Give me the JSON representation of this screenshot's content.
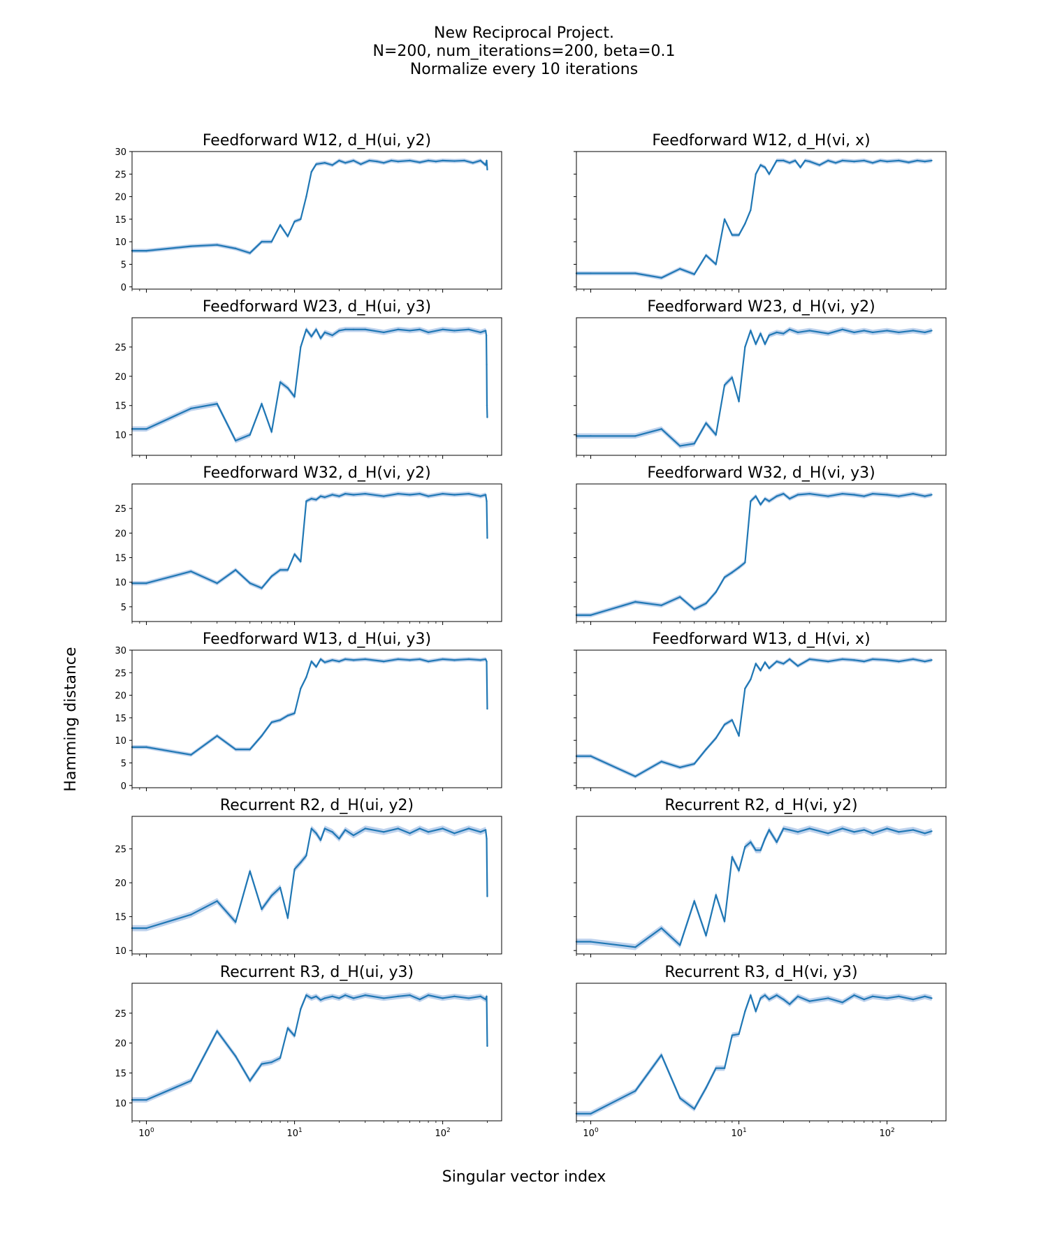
{
  "figure": {
    "title_lines": [
      "New Reciprocal Project.",
      "N=200, num_iterations=200, beta=0.1",
      "Normalize every 10 iterations"
    ],
    "xlabel": "Singular vector index",
    "ylabel": "Hamming distance",
    "line_color": "#1f77b4",
    "band_color": "#aec7e8"
  },
  "chart_data": [
    {
      "type": "line",
      "title": "Feedforward W12, d_H(ui, y2)",
      "xscale": "log",
      "xlim": [
        0.8,
        250
      ],
      "ylim": [
        -0.5,
        30
      ],
      "yticks": [
        0,
        5,
        10,
        15,
        20,
        25,
        30
      ],
      "show_yticklabels": true,
      "xticks": [
        "10^0",
        "10^1",
        "10^2"
      ],
      "show_xticklabels": false,
      "x": [
        0.8,
        1,
        2,
        3,
        4,
        5,
        6,
        7,
        8,
        9,
        10,
        11,
        12,
        13,
        14,
        16,
        18,
        20,
        22,
        25,
        28,
        32,
        36,
        40,
        45,
        50,
        60,
        70,
        80,
        90,
        100,
        120,
        140,
        160,
        180,
        195,
        198,
        200
      ],
      "y": [
        8,
        8,
        9,
        9.3,
        8.5,
        7.5,
        10,
        10,
        13.7,
        11.2,
        14.5,
        15,
        20,
        25.5,
        27.2,
        27.5,
        27,
        28,
        27.5,
        28,
        27.2,
        28,
        27.8,
        27.5,
        28,
        27.8,
        28,
        27.6,
        28,
        27.8,
        28,
        27.9,
        28,
        27.5,
        28,
        27,
        28,
        26
      ]
    },
    {
      "type": "line",
      "title": "Feedforward W12, d_H(vi, x)",
      "xscale": "log",
      "xlim": [
        0.8,
        250
      ],
      "ylim": [
        -0.5,
        30
      ],
      "yticks": [
        0,
        5,
        10,
        15,
        20,
        25,
        30
      ],
      "show_yticklabels": false,
      "xticks": [
        "10^0",
        "10^1",
        "10^2"
      ],
      "show_xticklabels": false,
      "x": [
        0.8,
        1,
        2,
        3,
        4,
        5,
        6,
        7,
        8,
        9,
        10,
        11,
        12,
        13,
        14,
        15,
        16,
        18,
        20,
        22,
        24,
        26,
        28,
        30,
        35,
        40,
        45,
        50,
        60,
        70,
        80,
        90,
        100,
        120,
        140,
        160,
        180,
        200
      ],
      "y": [
        3,
        3,
        3,
        2,
        4,
        2.8,
        7,
        5,
        15,
        11.5,
        11.5,
        14,
        17,
        25,
        27,
        26.5,
        25,
        28,
        28,
        27.5,
        28,
        26.5,
        28,
        27.8,
        27,
        28,
        27.5,
        28,
        27.8,
        28,
        27.5,
        28,
        27.8,
        28,
        27.6,
        28,
        27.8,
        28
      ]
    },
    {
      "type": "line",
      "title": "Feedforward W23, d_H(ui, y3)",
      "xscale": "log",
      "xlim": [
        0.8,
        250
      ],
      "ylim": [
        6.5,
        30
      ],
      "yticks": [
        10,
        15,
        20,
        25
      ],
      "show_yticklabels": true,
      "xticks": [
        "10^0",
        "10^1",
        "10^2"
      ],
      "show_xticklabels": false,
      "x": [
        0.8,
        1,
        2,
        3,
        4,
        5,
        6,
        7,
        8,
        9,
        10,
        11,
        12,
        13,
        14,
        15,
        16,
        18,
        20,
        22,
        25,
        30,
        40,
        50,
        60,
        70,
        80,
        100,
        120,
        150,
        180,
        195,
        197,
        198,
        199,
        200
      ],
      "y": [
        11,
        11,
        14.5,
        15.3,
        9,
        10,
        15.3,
        10.5,
        19,
        18,
        16.5,
        25,
        28,
        26.8,
        28,
        26.5,
        27.5,
        27,
        27.8,
        28,
        28,
        28,
        27.5,
        28,
        27.8,
        28,
        27.5,
        28,
        27.8,
        28,
        27.5,
        27.8,
        27,
        22,
        15,
        13
      ]
    },
    {
      "type": "line",
      "title": "Feedforward W23, d_H(vi, y2)",
      "xscale": "log",
      "xlim": [
        0.8,
        250
      ],
      "ylim": [
        6.5,
        30
      ],
      "yticks": [
        10,
        15,
        20,
        25
      ],
      "show_yticklabels": false,
      "xticks": [
        "10^0",
        "10^1",
        "10^2"
      ],
      "show_xticklabels": false,
      "x": [
        0.8,
        1,
        2,
        3,
        4,
        5,
        6,
        7,
        8,
        9,
        10,
        11,
        12,
        13,
        14,
        15,
        16,
        18,
        20,
        22,
        25,
        30,
        40,
        50,
        60,
        70,
        80,
        100,
        120,
        150,
        180,
        200
      ],
      "y": [
        9.8,
        9.8,
        9.8,
        11,
        8.1,
        8.5,
        12,
        10,
        18.5,
        19.8,
        15.7,
        25,
        27.8,
        25.5,
        27.3,
        25.5,
        27,
        27.5,
        27.3,
        28,
        27.5,
        27.8,
        27.3,
        28,
        27.5,
        27.8,
        27.5,
        27.8,
        27.5,
        27.8,
        27.5,
        27.8
      ]
    },
    {
      "type": "line",
      "title": "Feedforward W32, d_H(vi, y2)",
      "xscale": "log",
      "xlim": [
        0.8,
        250
      ],
      "ylim": [
        2,
        30
      ],
      "yticks": [
        5,
        10,
        15,
        20,
        25
      ],
      "show_yticklabels": true,
      "xticks": [
        "10^0",
        "10^1",
        "10^2"
      ],
      "show_xticklabels": false,
      "x": [
        0.8,
        1,
        2,
        3,
        4,
        5,
        6,
        7,
        8,
        9,
        10,
        11,
        12,
        13,
        14,
        15,
        16,
        18,
        20,
        22,
        25,
        30,
        40,
        50,
        60,
        70,
        80,
        100,
        120,
        150,
        180,
        195,
        198,
        200
      ],
      "y": [
        9.8,
        9.8,
        12.2,
        9.8,
        12.5,
        9.8,
        8.8,
        11.2,
        12.5,
        12.5,
        15.7,
        14.2,
        26.5,
        27,
        26.8,
        27.5,
        27.3,
        27.8,
        27.5,
        28,
        27.8,
        28,
        27.5,
        28,
        27.8,
        28,
        27.5,
        28,
        27.8,
        28,
        27.5,
        27.8,
        26.5,
        19
      ]
    },
    {
      "type": "line",
      "title": "Feedforward W32, d_H(vi, y3)",
      "xscale": "log",
      "xlim": [
        0.8,
        250
      ],
      "ylim": [
        2,
        30
      ],
      "yticks": [
        5,
        10,
        15,
        20,
        25
      ],
      "show_yticklabels": false,
      "xticks": [
        "10^0",
        "10^1",
        "10^2"
      ],
      "show_xticklabels": false,
      "x": [
        0.8,
        1,
        2,
        3,
        4,
        5,
        6,
        7,
        8,
        9,
        10,
        11,
        12,
        13,
        14,
        15,
        16,
        18,
        20,
        22,
        25,
        30,
        40,
        50,
        60,
        70,
        80,
        100,
        120,
        150,
        180,
        200
      ],
      "y": [
        3.3,
        3.3,
        6,
        5.3,
        7,
        4.5,
        5.7,
        8,
        11,
        12,
        13,
        14,
        26.5,
        27.5,
        25.8,
        27,
        26.5,
        27.5,
        28,
        27,
        27.8,
        28,
        27.5,
        28,
        27.8,
        27.5,
        28,
        27.8,
        27.5,
        28,
        27.5,
        27.8
      ]
    },
    {
      "type": "line",
      "title": "Feedforward W13, d_H(ui, y3)",
      "xscale": "log",
      "xlim": [
        0.8,
        250
      ],
      "ylim": [
        -0.5,
        30
      ],
      "yticks": [
        0,
        5,
        10,
        15,
        20,
        25,
        30
      ],
      "show_yticklabels": true,
      "xticks": [
        "10^0",
        "10^1",
        "10^2"
      ],
      "show_xticklabels": false,
      "x": [
        0.8,
        1,
        2,
        3,
        4,
        5,
        6,
        7,
        8,
        9,
        10,
        11,
        12,
        13,
        14,
        15,
        16,
        18,
        20,
        22,
        25,
        30,
        40,
        50,
        60,
        70,
        80,
        100,
        120,
        150,
        180,
        195,
        198,
        200
      ],
      "y": [
        8.5,
        8.5,
        6.8,
        11,
        8,
        8,
        11,
        14,
        14.5,
        15.5,
        16,
        21.5,
        24,
        27.5,
        26.3,
        28,
        27.3,
        27.8,
        27.5,
        28,
        27.8,
        28,
        27.5,
        28,
        27.8,
        28,
        27.5,
        28,
        27.8,
        28,
        27.8,
        28,
        27.5,
        17
      ]
    },
    {
      "type": "line",
      "title": "Feedforward W13, d_H(vi, x)",
      "xscale": "log",
      "xlim": [
        0.8,
        250
      ],
      "ylim": [
        -0.5,
        30
      ],
      "yticks": [
        0,
        5,
        10,
        15,
        20,
        25,
        30
      ],
      "show_yticklabels": false,
      "xticks": [
        "10^0",
        "10^1",
        "10^2"
      ],
      "show_xticklabels": false,
      "x": [
        0.8,
        1,
        2,
        3,
        4,
        5,
        6,
        7,
        8,
        9,
        10,
        11,
        12,
        13,
        14,
        15,
        16,
        18,
        20,
        22,
        25,
        30,
        40,
        50,
        60,
        70,
        80,
        100,
        120,
        150,
        180,
        200
      ],
      "y": [
        6.5,
        6.5,
        2,
        5.3,
        4,
        4.8,
        8,
        10.5,
        13.5,
        14.5,
        11,
        21.5,
        23.5,
        27,
        25.5,
        27.3,
        26,
        27.5,
        27,
        28,
        26.5,
        28,
        27.5,
        28,
        27.8,
        27.5,
        28,
        27.8,
        27.5,
        28,
        27.5,
        27.8
      ]
    },
    {
      "type": "line",
      "title": "Recurrent R2, d_H(ui, y2)",
      "xscale": "log",
      "xlim": [
        0.8,
        250
      ],
      "ylim": [
        9.5,
        29.8
      ],
      "yticks": [
        10,
        15,
        20,
        25
      ],
      "show_yticklabels": true,
      "xticks": [
        "10^0",
        "10^1",
        "10^2"
      ],
      "show_xticklabels": false,
      "x": [
        0.8,
        1,
        2,
        3,
        4,
        5,
        6,
        7,
        8,
        9,
        10,
        11,
        12,
        13,
        14,
        15,
        16,
        18,
        20,
        22,
        25,
        30,
        40,
        50,
        60,
        70,
        80,
        100,
        120,
        150,
        180,
        195,
        198,
        200
      ],
      "y": [
        13.3,
        13.3,
        15.3,
        17.3,
        14.2,
        21.7,
        16.1,
        18.1,
        19.3,
        14.8,
        22,
        23,
        24,
        28,
        27.3,
        26.3,
        28,
        27.5,
        26.5,
        27.8,
        27,
        28,
        27.5,
        28,
        27.3,
        28,
        27.5,
        28,
        27.3,
        28,
        27.5,
        27.8,
        26.5,
        18
      ]
    },
    {
      "type": "line",
      "title": "Recurrent R2, d_H(vi, y2)",
      "xscale": "log",
      "xlim": [
        0.8,
        250
      ],
      "ylim": [
        9.5,
        29.8
      ],
      "yticks": [
        10,
        15,
        20,
        25
      ],
      "show_yticklabels": false,
      "xticks": [
        "10^0",
        "10^1",
        "10^2"
      ],
      "show_xticklabels": false,
      "x": [
        0.8,
        1,
        2,
        3,
        4,
        5,
        6,
        7,
        8,
        9,
        10,
        11,
        12,
        13,
        14,
        15,
        16,
        18,
        20,
        22,
        25,
        30,
        40,
        50,
        60,
        70,
        80,
        100,
        120,
        150,
        180,
        200
      ],
      "y": [
        11.3,
        11.3,
        10.5,
        13.3,
        10.8,
        17.3,
        12.2,
        18.2,
        14.3,
        23.8,
        21.8,
        25.3,
        26,
        24.8,
        24.8,
        26.5,
        27.8,
        26,
        28,
        27.8,
        27.5,
        28,
        27.3,
        28,
        27.5,
        27.8,
        27.3,
        28,
        27.5,
        27.8,
        27.3,
        27.6
      ]
    },
    {
      "type": "line",
      "title": "Recurrent R3, d_H(ui, y3)",
      "xscale": "log",
      "xlim": [
        0.8,
        250
      ],
      "ylim": [
        7,
        30
      ],
      "yticks": [
        10,
        15,
        20,
        25
      ],
      "show_yticklabels": true,
      "xticks": [
        "10^0",
        "10^1",
        "10^2"
      ],
      "show_xticklabels": true,
      "x": [
        0.8,
        1,
        2,
        3,
        4,
        5,
        6,
        7,
        8,
        9,
        10,
        11,
        12,
        13,
        14,
        15,
        16,
        18,
        20,
        22,
        25,
        30,
        40,
        50,
        60,
        70,
        80,
        100,
        120,
        150,
        180,
        195,
        198,
        200
      ],
      "y": [
        10.5,
        10.5,
        13.7,
        22,
        17.8,
        13.7,
        16.5,
        16.8,
        17.5,
        22.5,
        21.2,
        25.7,
        28,
        27.5,
        27.8,
        27.2,
        27.5,
        27.8,
        27.5,
        28,
        27.5,
        28,
        27.5,
        27.8,
        28,
        27.3,
        28,
        27.5,
        27.8,
        27.5,
        27.8,
        27.3,
        27.8,
        19.5
      ]
    },
    {
      "type": "line",
      "title": "Recurrent R3, d_H(vi, y3)",
      "xscale": "log",
      "xlim": [
        0.8,
        250
      ],
      "ylim": [
        7,
        30
      ],
      "yticks": [
        10,
        15,
        20,
        25
      ],
      "show_yticklabels": false,
      "xticks": [
        "10^0",
        "10^1",
        "10^2"
      ],
      "show_xticklabels": true,
      "x": [
        0.8,
        1,
        2,
        3,
        4,
        5,
        6,
        7,
        8,
        9,
        10,
        11,
        12,
        13,
        14,
        15,
        16,
        18,
        20,
        22,
        25,
        30,
        40,
        50,
        60,
        70,
        80,
        100,
        120,
        150,
        180,
        200
      ],
      "y": [
        8.2,
        8.2,
        12,
        18,
        10.8,
        9,
        12.5,
        15.8,
        15.8,
        21.3,
        21.5,
        25.3,
        28,
        25.3,
        27.5,
        28,
        27.3,
        28,
        27.3,
        26.5,
        27.8,
        27,
        27.5,
        26.8,
        28,
        27.3,
        27.8,
        27.5,
        27.8,
        27.3,
        27.8,
        27.5
      ]
    }
  ]
}
